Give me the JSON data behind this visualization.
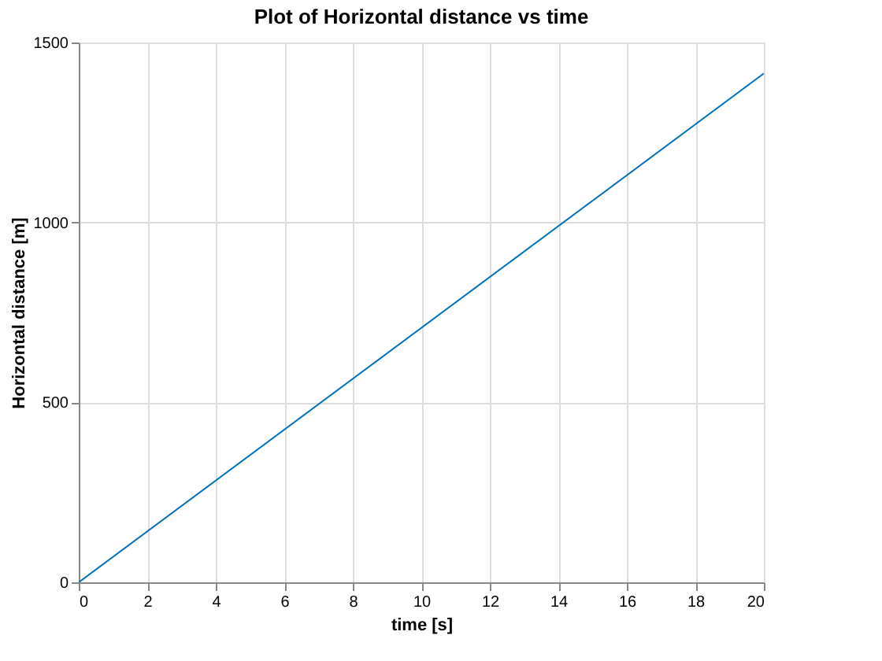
{
  "chart_data": {
    "type": "line",
    "title": "Plot of Horizontal distance vs time",
    "xlabel": "time [s]",
    "ylabel": "Horizontal distance [m]",
    "x": [
      0,
      20
    ],
    "series": [
      {
        "color": "#0072bd",
        "values": [
          0,
          1414
        ]
      }
    ],
    "xlim": [
      0,
      20
    ],
    "xticks": [
      0,
      2,
      4,
      6,
      8,
      10,
      12,
      14,
      16,
      18,
      20
    ],
    "ylim": [
      0,
      1500
    ],
    "yticks": [
      0,
      500,
      1000,
      1500
    ],
    "grid": true,
    "marker": "none",
    "line_style": "solid"
  }
}
